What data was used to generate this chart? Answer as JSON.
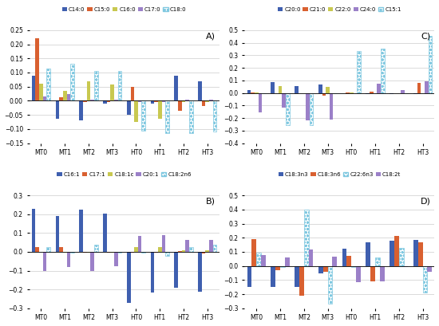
{
  "categories": [
    "MT0",
    "MT1",
    "MT2",
    "MT3",
    "HT0",
    "HT1",
    "HT2",
    "HT3"
  ],
  "A_title": "A)",
  "A_legend": [
    "C14:0",
    "C15:0",
    "C16:0",
    "C17:0",
    "C18:0"
  ],
  "A_colors": [
    "#3F5FAF",
    "#D96030",
    "#C8C850",
    "#9B80C8",
    "#80C8E0"
  ],
  "A_dotted": [
    false,
    false,
    false,
    false,
    true
  ],
  "A_ylim": [
    -0.15,
    0.25
  ],
  "A_yticks": [
    -0.15,
    -0.1,
    -0.05,
    0.0,
    0.05,
    0.1,
    0.15,
    0.2,
    0.25
  ],
  "A_data": [
    [
      0.09,
      -0.065,
      -0.07,
      -0.01,
      -0.05,
      -0.01,
      0.09,
      0.068
    ],
    [
      0.22,
      0.012,
      -0.005,
      -0.005,
      0.05,
      -0.005,
      -0.035,
      -0.02
    ],
    [
      0.06,
      0.035,
      0.068,
      0.058,
      -0.075,
      -0.065,
      -0.005,
      -0.005
    ],
    [
      0.015,
      0.025,
      0.005,
      0.005,
      -0.005,
      -0.005,
      0.005,
      0.005
    ],
    [
      0.115,
      0.13,
      0.105,
      0.105,
      -0.105,
      -0.115,
      -0.115,
      -0.11
    ]
  ],
  "B_title": "B)",
  "B_legend": [
    "C16:1",
    "C17:1",
    "C18:1c",
    "C20:1",
    "C18:2n6"
  ],
  "B_colors": [
    "#3F5FAF",
    "#D96030",
    "#C8C850",
    "#9B80C8",
    "#80C8E0"
  ],
  "B_dotted": [
    false,
    false,
    false,
    false,
    true
  ],
  "B_ylim": [
    -0.3,
    0.3
  ],
  "B_yticks": [
    -0.3,
    -0.2,
    -0.1,
    0.0,
    0.1,
    0.2,
    0.3
  ],
  "B_data": [
    [
      0.23,
      0.19,
      0.225,
      0.205,
      -0.27,
      -0.215,
      -0.19,
      -0.21
    ],
    [
      0.025,
      0.025,
      -0.005,
      -0.005,
      -0.005,
      -0.005,
      0.005,
      -0.01
    ],
    [
      0.0,
      -0.005,
      -0.005,
      -0.005,
      0.025,
      0.025,
      0.01,
      0.01
    ],
    [
      -0.1,
      -0.08,
      -0.1,
      -0.075,
      0.085,
      0.09,
      0.065,
      0.065
    ],
    [
      0.025,
      -0.005,
      0.04,
      -0.005,
      -0.005,
      -0.02,
      0.025,
      0.04
    ]
  ],
  "C_title": "C)",
  "C_legend": [
    "C20:0",
    "C21:0",
    "C22:0",
    "C24:0",
    "C15:1"
  ],
  "C_colors": [
    "#3F5FAF",
    "#D96030",
    "#C8C850",
    "#9B80C8",
    "#80C8E0"
  ],
  "C_dotted": [
    false,
    false,
    false,
    false,
    true
  ],
  "C_ylim": [
    -0.4,
    0.5
  ],
  "C_yticks": [
    -0.4,
    -0.3,
    -0.2,
    -0.1,
    0.0,
    0.1,
    0.2,
    0.3,
    0.4,
    0.5
  ],
  "C_data": [
    [
      0.02,
      0.085,
      0.055,
      0.065,
      -0.005,
      -0.01,
      -0.01,
      -0.01
    ],
    [
      0.005,
      -0.005,
      -0.005,
      -0.02,
      0.005,
      0.01,
      -0.005,
      0.08
    ],
    [
      0.005,
      0.055,
      -0.005,
      0.045,
      0.005,
      -0.005,
      -0.005,
      -0.005
    ],
    [
      -0.155,
      -0.12,
      -0.22,
      -0.21,
      -0.005,
      0.075,
      0.025,
      0.095
    ],
    [
      -0.005,
      -0.255,
      -0.255,
      -0.005,
      0.335,
      0.355,
      -0.005,
      0.455
    ]
  ],
  "D_title": "D)",
  "D_legend": [
    "C18:3n3",
    "C18:3n6",
    "C22:6n3",
    "C18:2t"
  ],
  "D_colors": [
    "#3F5FAF",
    "#D96030",
    "#C8C850",
    "#9B80C8"
  ],
  "D_dotted": [
    false,
    false,
    true,
    false
  ],
  "D_ylim": [
    -0.3,
    0.5
  ],
  "D_yticks": [
    -0.3,
    -0.2,
    -0.1,
    0.0,
    0.1,
    0.2,
    0.3,
    0.4,
    0.5
  ],
  "D_data": [
    [
      -0.15,
      -0.15,
      -0.15,
      -0.05,
      0.125,
      0.165,
      0.18,
      0.185
    ],
    [
      0.19,
      -0.03,
      -0.21,
      -0.04,
      0.07,
      -0.11,
      0.21,
      0.17
    ],
    [
      0.095,
      -0.005,
      0.4,
      -0.27,
      -0.005,
      0.06,
      0.13,
      -0.19
    ],
    [
      0.08,
      0.06,
      0.115,
      0.065,
      -0.115,
      -0.11,
      -0.005,
      -0.04
    ]
  ]
}
